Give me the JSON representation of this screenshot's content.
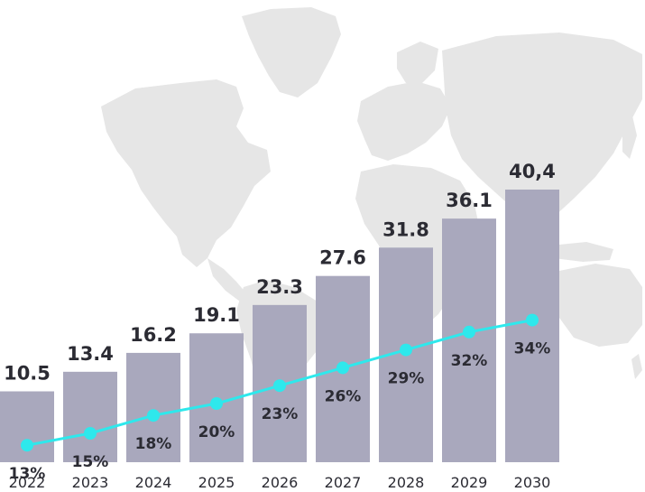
{
  "chart_data": {
    "type": "bar",
    "title": "",
    "xlabel": "",
    "ylabel": "",
    "categories": [
      "2022",
      "2023",
      "2024",
      "2025",
      "2026",
      "2027",
      "2028",
      "2029",
      "2030"
    ],
    "series": [
      {
        "values": [
          10.5,
          13.4,
          16.2,
          19.1,
          23.3,
          27.6,
          31.8,
          36.1,
          40.4
        ],
        "value_labels": [
          "10.5",
          "13.4",
          "16.2",
          "19.1",
          "23.3",
          "27.6",
          "31.8",
          "36.1",
          "40,4"
        ],
        "color": "#a9a8bd",
        "kind": "bar"
      },
      {
        "values": [
          13,
          15,
          18,
          20,
          23,
          26,
          29,
          32,
          34
        ],
        "value_labels": [
          "13%",
          "15%",
          "18%",
          "20%",
          "23%",
          "26%",
          "29%",
          "32%",
          "34%"
        ],
        "color": "#2ee8ec",
        "kind": "line"
      }
    ],
    "ylim": [
      0,
      40.4
    ],
    "grid": false,
    "background": "world-map",
    "background_color": "#e8e8e8"
  }
}
